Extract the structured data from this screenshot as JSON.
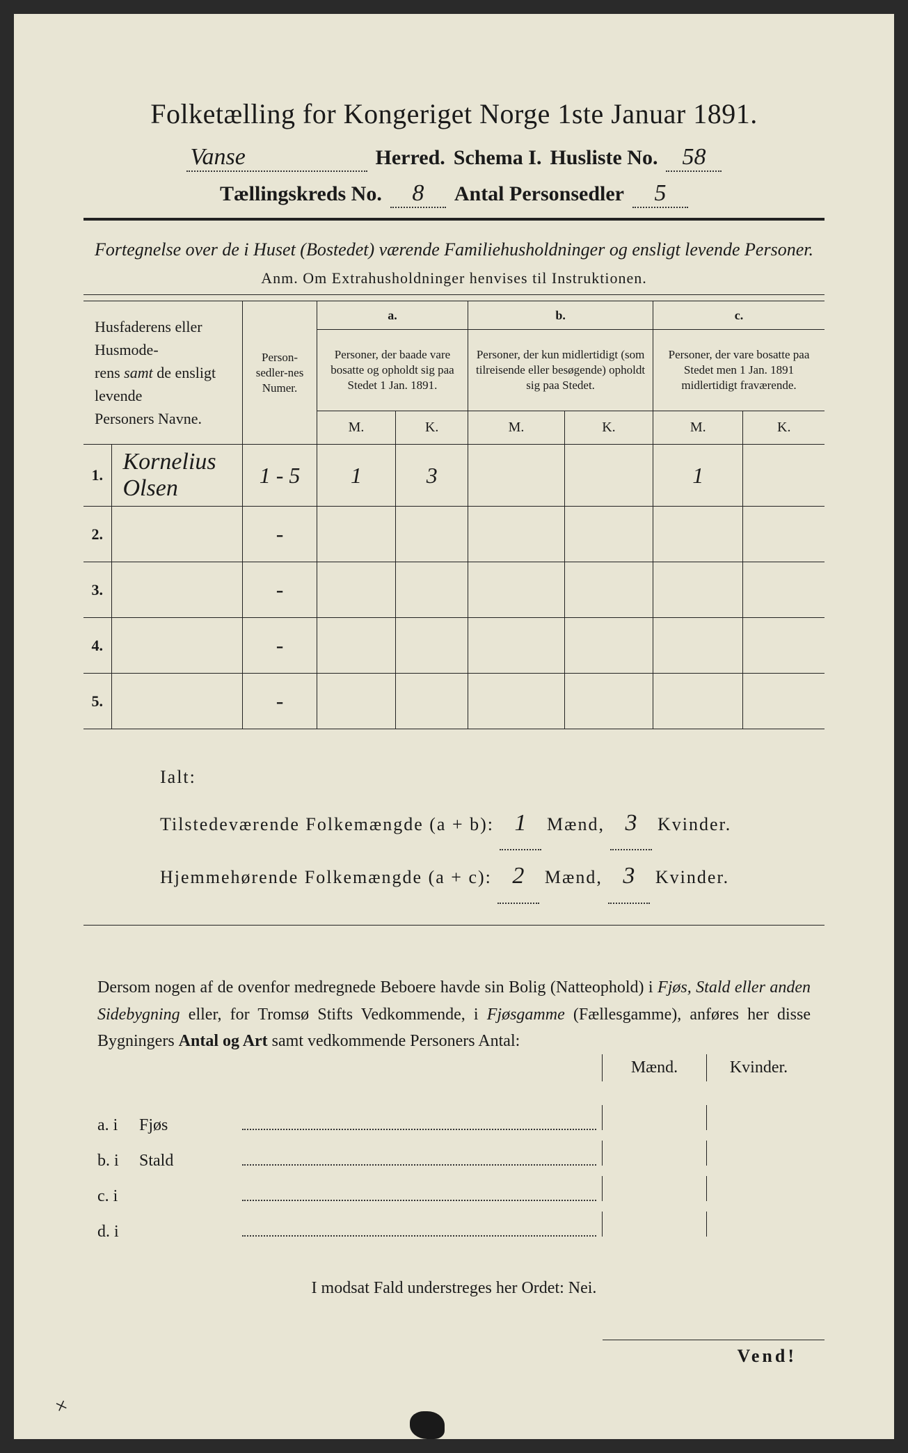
{
  "colors": {
    "paper": "#e8e5d4",
    "ink": "#1a1a1a",
    "border": "#222222"
  },
  "typography": {
    "body_font": "Georgia, Times New Roman, serif",
    "handwriting_font": "Brush Script MT, cursive",
    "title_size_pt": 40,
    "header_size_pt": 30
  },
  "title": "Folketælling for Kongeriget Norge 1ste Januar 1891.",
  "header": {
    "herred_value": "Vanse",
    "herred_label": "Herred.",
    "schema_label": "Schema I.",
    "husliste_label": "Husliste No.",
    "husliste_value": "58",
    "kreds_label": "Tællingskreds No.",
    "kreds_value": "8",
    "personsedler_label": "Antal Personsedler",
    "personsedler_value": "5"
  },
  "subtitle": "Fortegnelse over de i Huset (Bostedet) værende Familiehusholdninger og ensligt levende Personer.",
  "anm": "Anm. Om Extrahusholdninger henvises til Instruktionen.",
  "table": {
    "col_names": "Husfaderens eller Husmoderens samt de ensligt levende Personers Navne.",
    "col_numer": "Person-sedler-nes Numer.",
    "group_a_label": "a.",
    "group_a_desc": "Personer, der baade vare bosatte og opholdt sig paa Stedet 1 Jan. 1891.",
    "group_b_label": "b.",
    "group_b_desc": "Personer, der kun midlertidigt (som tilreisende eller besøgende) opholdt sig paa Stedet.",
    "group_c_label": "c.",
    "group_c_desc": "Personer, der vare bosatte paa Stedet men 1 Jan. 1891 midlertidigt fraværende.",
    "m_label": "M.",
    "k_label": "K.",
    "rows": [
      {
        "num": "1.",
        "name": "Kornelius Olsen",
        "numer": "1 - 5",
        "a_m": "1",
        "a_k": "3",
        "b_m": "",
        "b_k": "",
        "c_m": "1",
        "c_k": ""
      },
      {
        "num": "2.",
        "name": "",
        "numer": "-",
        "a_m": "",
        "a_k": "",
        "b_m": "",
        "b_k": "",
        "c_m": "",
        "c_k": ""
      },
      {
        "num": "3.",
        "name": "",
        "numer": "-",
        "a_m": "",
        "a_k": "",
        "b_m": "",
        "b_k": "",
        "c_m": "",
        "c_k": ""
      },
      {
        "num": "4.",
        "name": "",
        "numer": "-",
        "a_m": "",
        "a_k": "",
        "b_m": "",
        "b_k": "",
        "c_m": "",
        "c_k": ""
      },
      {
        "num": "5.",
        "name": "",
        "numer": "-",
        "a_m": "",
        "a_k": "",
        "b_m": "",
        "b_k": "",
        "c_m": "",
        "c_k": ""
      }
    ]
  },
  "totals": {
    "ialt_label": "Ialt:",
    "tilstede_label": "Tilstedeværende Folkemængde (a + b):",
    "tilstede_m": "1",
    "tilstede_k": "3",
    "hjemme_label": "Hjemmehørende Folkemængde (a + c):",
    "hjemme_m": "2",
    "hjemme_k": "3",
    "maend_label": "Mænd,",
    "kvinder_label": "Kvinder."
  },
  "note": {
    "text_1": "Dersom nogen af de ovenfor medregnede Beboere havde sin Bolig (Natteophold) i ",
    "em_1": "Fjøs, Stald eller anden Sidebygning",
    "text_2": " eller, for Tromsø Stifts Vedkommende, i ",
    "em_2": "Fjøsgamme",
    "text_3": " (Fællesgamme), anføres her disse Bygningers ",
    "bold_1": "Antal og Art",
    "text_4": " samt vedkommende Personers Antal:"
  },
  "buildings": {
    "maend_label": "Mænd.",
    "kvinder_label": "Kvinder.",
    "rows": [
      {
        "key": "a.  i",
        "type": "Fjøs"
      },
      {
        "key": "b.  i",
        "type": "Stald"
      },
      {
        "key": "c.  i",
        "type": ""
      },
      {
        "key": "d.  i",
        "type": ""
      }
    ]
  },
  "modsat": "I modsat Fald understreges her Ordet: Nei.",
  "vend": "Vend!"
}
